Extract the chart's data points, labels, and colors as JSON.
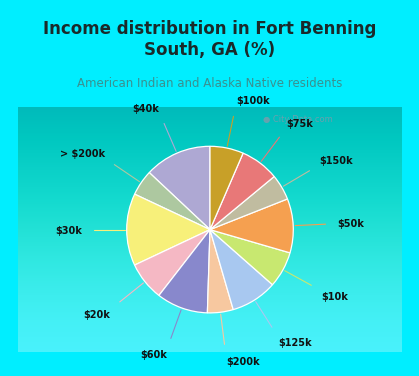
{
  "title": "Income distribution in Fort Benning\nSouth, GA (%)",
  "subtitle": "American Indian and Alaska Native residents",
  "labels": [
    "$40k",
    "> $200k",
    "$30k",
    "$20k",
    "$60k",
    "$200k",
    "$125k",
    "$10k",
    "$50k",
    "$150k",
    "$75k",
    "$100k"
  ],
  "sizes": [
    13.0,
    5.0,
    14.0,
    7.5,
    10.0,
    5.0,
    9.0,
    7.0,
    10.5,
    5.0,
    7.5,
    6.5
  ],
  "colors": [
    "#aea8d3",
    "#adc8a0",
    "#f7f07a",
    "#f5b8c4",
    "#8888cc",
    "#f7c8a0",
    "#a8c8f0",
    "#c8e870",
    "#f5a050",
    "#c0bca0",
    "#e87878",
    "#c8a028"
  ],
  "background_cyan": "#00eeff",
  "background_chart_outer": "#c8f0d8",
  "background_chart_inner": "#e8f8f0",
  "title_color": "#1a2a2a",
  "subtitle_color": "#3a9090",
  "startangle": 90,
  "wedge_edge_color": "white",
  "watermark": "City-Data.com",
  "line_colors": [
    "#aea8d3",
    "#adc8a0",
    "#f7f07a",
    "#f5b8c4",
    "#8888cc",
    "#f7c8a0",
    "#a8c8f0",
    "#c8e870",
    "#f5a050",
    "#c0bca0",
    "#e87878",
    "#c8a028"
  ],
  "title_fontsize": 12,
  "subtitle_fontsize": 8.5,
  "label_fontsize": 7.0
}
